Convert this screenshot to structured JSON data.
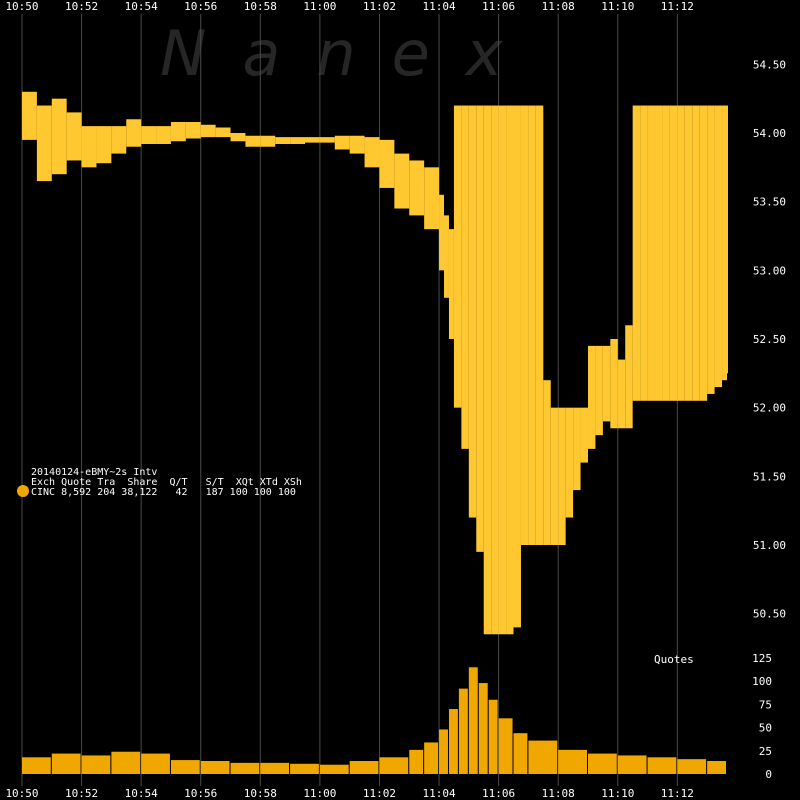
{
  "watermark": "Nanex",
  "legend": {
    "title": "20140124-eBMY~2s Intv",
    "header": "Exch Quote Tra  Share  Q/T   S/T  XQt XTd XSh",
    "row": "CINC 8,592 204 38,122   42   187 100 100 100",
    "marker_color": "#f0a800"
  },
  "colors": {
    "background": "#000000",
    "quote_fill": "#ffc830",
    "volume": "#f0a800",
    "grid": "#4a4a4a",
    "text": "#ffffff"
  },
  "chart_data": [
    {
      "type": "area",
      "title": "",
      "xlabel": "",
      "ylabel": "",
      "x_ticks": [
        "10:50",
        "10:52",
        "10:54",
        "10:56",
        "10:58",
        "11:00",
        "11:02",
        "11:04",
        "11:06",
        "11:08",
        "11:10",
        "11:12"
      ],
      "xlim": [
        "10:50",
        "11:13:40"
      ],
      "ylim": [
        50.25,
        54.75
      ],
      "y_ticks": [
        "50.50",
        "51.00",
        "51.50",
        "52.00",
        "52.50",
        "53.00",
        "53.50",
        "54.00",
        "54.50"
      ],
      "grid": true,
      "series": [
        {
          "name": "",
          "style": "quote band (bid-ask range)",
          "x": [
            "10:50:00",
            "10:50:30",
            "10:51:00",
            "10:51:30",
            "10:52:00",
            "10:52:30",
            "10:53:00",
            "10:53:30",
            "10:54:00",
            "10:54:30",
            "10:55:00",
            "10:55:30",
            "10:56:00",
            "10:56:30",
            "10:57:00",
            "10:57:30",
            "10:58:00",
            "10:58:30",
            "10:59:00",
            "10:59:30",
            "11:00:00",
            "11:00:30",
            "11:01:00",
            "11:01:30",
            "11:02:00",
            "11:02:30",
            "11:03:00",
            "11:03:30",
            "11:04:00",
            "11:04:10",
            "11:04:20",
            "11:04:30",
            "11:04:45",
            "11:05:00",
            "11:05:15",
            "11:05:30",
            "11:05:45",
            "11:06:00",
            "11:06:15",
            "11:06:30",
            "11:06:45",
            "11:07:00",
            "11:07:15",
            "11:07:30",
            "11:07:45",
            "11:08:00",
            "11:08:15",
            "11:08:30",
            "11:08:45",
            "11:09:00",
            "11:09:15",
            "11:09:30",
            "11:09:45",
            "11:10:00",
            "11:10:15",
            "11:10:30",
            "11:10:45",
            "11:11:00",
            "11:11:15",
            "11:11:30",
            "11:11:45",
            "11:12:00",
            "11:12:15",
            "11:12:30",
            "11:12:45",
            "11:13:00",
            "11:13:15",
            "11:13:30",
            "11:13:40"
          ],
          "low": [
            53.95,
            53.65,
            53.7,
            53.8,
            53.75,
            53.78,
            53.85,
            53.9,
            53.92,
            53.92,
            53.94,
            53.96,
            53.97,
            53.97,
            53.94,
            53.9,
            53.9,
            53.92,
            53.92,
            53.93,
            53.93,
            53.88,
            53.85,
            53.75,
            53.6,
            53.45,
            53.4,
            53.3,
            53.0,
            52.8,
            52.5,
            52.0,
            51.7,
            51.2,
            50.95,
            50.35,
            50.35,
            50.35,
            50.35,
            50.4,
            51.0,
            51.0,
            51.0,
            51.0,
            51.0,
            51.0,
            51.2,
            51.4,
            51.6,
            51.7,
            51.8,
            51.9,
            51.85,
            51.85,
            51.85,
            52.05,
            52.05,
            52.05,
            52.05,
            52.05,
            52.05,
            52.05,
            52.05,
            52.05,
            52.05,
            52.1,
            52.15,
            52.2,
            52.25
          ],
          "high": [
            54.3,
            54.2,
            54.25,
            54.15,
            54.05,
            54.05,
            54.05,
            54.1,
            54.05,
            54.05,
            54.08,
            54.08,
            54.06,
            54.04,
            54.0,
            53.98,
            53.98,
            53.97,
            53.97,
            53.97,
            53.97,
            53.98,
            53.98,
            53.97,
            53.95,
            53.85,
            53.8,
            53.75,
            53.55,
            53.4,
            53.3,
            54.2,
            54.2,
            54.2,
            54.2,
            54.2,
            54.2,
            54.2,
            54.2,
            54.2,
            54.2,
            54.2,
            54.2,
            52.2,
            52.0,
            52.0,
            52.0,
            52.0,
            52.0,
            52.45,
            52.45,
            52.45,
            52.5,
            52.35,
            52.6,
            54.2,
            54.2,
            54.2,
            54.2,
            54.2,
            54.2,
            54.2,
            54.2,
            54.2,
            54.2,
            54.2,
            54.2,
            54.2,
            54.2
          ]
        }
      ]
    },
    {
      "type": "bar",
      "title": "Quotes",
      "xlabel": "",
      "ylabel": "",
      "ylim": [
        0,
        125
      ],
      "y_ticks": [
        "0",
        "25",
        "50",
        "75",
        "100",
        "125"
      ],
      "series": [
        {
          "name": "",
          "x": [
            "10:50",
            "10:51",
            "10:52",
            "10:53",
            "10:54",
            "10:55",
            "10:56",
            "10:57",
            "10:58",
            "10:59",
            "11:00",
            "11:01",
            "11:02",
            "11:03",
            "11:03:30",
            "11:04",
            "11:04:20",
            "11:04:40",
            "11:05",
            "11:05:20",
            "11:05:40",
            "11:06",
            "11:06:30",
            "11:07",
            "11:08",
            "11:09",
            "11:10",
            "11:11",
            "11:12",
            "11:13"
          ],
          "values": [
            18,
            22,
            20,
            24,
            22,
            15,
            14,
            12,
            12,
            11,
            10,
            14,
            18,
            26,
            34,
            48,
            70,
            92,
            115,
            98,
            80,
            60,
            44,
            36,
            26,
            22,
            20,
            18,
            16,
            14
          ]
        }
      ]
    }
  ]
}
